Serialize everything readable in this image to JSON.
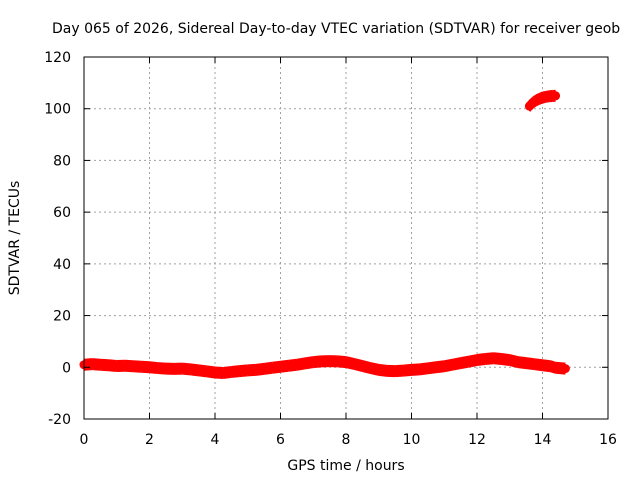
{
  "chart_data": {
    "type": "scatter",
    "title": "Day 065 of 2026, Sidereal Day-to-day VTEC variation (SDTVAR) for receiver geob",
    "xlabel": "GPS time / hours",
    "ylabel": "SDTVAR / TECUs",
    "xlim": [
      0,
      16
    ],
    "ylim": [
      -20,
      120
    ],
    "xticks": [
      0,
      2,
      4,
      6,
      8,
      10,
      12,
      14,
      16
    ],
    "yticks": [
      -20,
      0,
      20,
      40,
      60,
      80,
      100,
      120
    ],
    "grid": true,
    "series": [
      {
        "name": "SDTVAR",
        "color": "#ff0000",
        "marker": "plus",
        "x": [
          0.0,
          0.25,
          0.5,
          0.75,
          1.0,
          1.25,
          1.5,
          1.75,
          2.0,
          2.25,
          2.5,
          2.75,
          3.0,
          3.25,
          3.5,
          3.75,
          4.0,
          4.25,
          4.5,
          4.75,
          5.0,
          5.25,
          5.5,
          5.75,
          6.0,
          6.25,
          6.5,
          6.75,
          7.0,
          7.25,
          7.5,
          7.75,
          8.0,
          8.25,
          8.5,
          8.75,
          9.0,
          9.25,
          9.5,
          9.75,
          10.0,
          10.25,
          10.5,
          10.75,
          11.0,
          11.25,
          11.5,
          11.75,
          12.0,
          12.25,
          12.5,
          12.75,
          13.0,
          13.25,
          13.5,
          13.75,
          14.0,
          14.25,
          14.4,
          14.7,
          13.6,
          13.7,
          13.8,
          13.9,
          14.0,
          14.1,
          14.2,
          14.3,
          14.4
        ],
        "y": [
          1.0,
          1.2,
          1.0,
          0.8,
          0.5,
          0.6,
          0.4,
          0.2,
          0.0,
          -0.3,
          -0.5,
          -0.6,
          -0.5,
          -0.8,
          -1.2,
          -1.6,
          -2.0,
          -2.2,
          -1.8,
          -1.5,
          -1.2,
          -1.0,
          -0.6,
          -0.2,
          0.2,
          0.6,
          1.0,
          1.5,
          2.0,
          2.3,
          2.4,
          2.3,
          2.0,
          1.3,
          0.5,
          -0.3,
          -1.0,
          -1.4,
          -1.5,
          -1.3,
          -1.0,
          -0.8,
          -0.4,
          0.0,
          0.4,
          1.0,
          1.6,
          2.2,
          2.8,
          3.2,
          3.5,
          3.2,
          2.8,
          2.0,
          1.6,
          1.2,
          0.8,
          0.4,
          -0.2,
          -0.5,
          101.0,
          102.3,
          103.2,
          103.8,
          104.3,
          104.6,
          104.8,
          104.9,
          105.0
        ]
      }
    ]
  }
}
